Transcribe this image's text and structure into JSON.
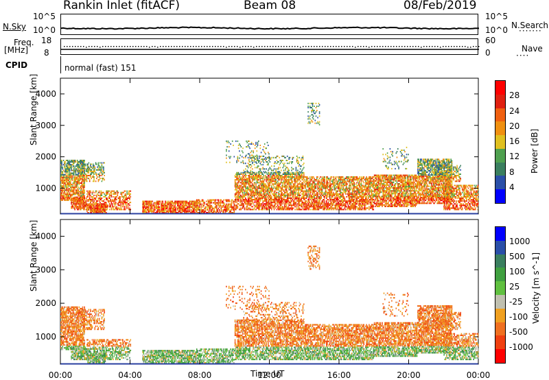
{
  "header": {
    "title": "Rankin Inlet (fitACF)",
    "beam": "Beam 08",
    "date": "08/Feb/2019"
  },
  "panel_nsky": {
    "label": "N.Sky",
    "ytick_top": "10^5",
    "ytick_bottom": "10^0",
    "right_label": "N.Search",
    "right_tick_top": "10^5",
    "right_tick_bottom": "10^0"
  },
  "panel_freq": {
    "label_line1": "Freq.",
    "label_line2": "[MHz]",
    "ytick_top": "18",
    "ytick_bottom": "8",
    "right_label": "Nave",
    "right_tick_top": "60",
    "right_tick_bottom": "0"
  },
  "panel_cpid": {
    "label": "CPID",
    "text": "normal (fast) 151"
  },
  "colors": {
    "power": [
      "#0000ff",
      "#2a4fa8",
      "#3a7f5f",
      "#4fa04f",
      "#e0c020",
      "#f09010",
      "#f06010",
      "#e02010",
      "#ff0000"
    ],
    "velocity": [
      "#ff0000",
      "#f04010",
      "#f07020",
      "#f0a020",
      "#c0c0b0",
      "#60c040",
      "#40a040",
      "#3a7f5f",
      "#2a4fa8",
      "#0000ff"
    ]
  },
  "chart_data": [
    {
      "type": "heatmap",
      "name": "power",
      "ylabel": "Slant Range [km]",
      "ylim": [
        180,
        4500
      ],
      "yticks": [
        "1000",
        "2000",
        "3000",
        "4000"
      ],
      "xlim": [
        0,
        24
      ],
      "colorbar_label": "Power [dB]",
      "colorbar_ticks": [
        "4",
        "8",
        "12",
        "16",
        "20",
        "24",
        "28"
      ],
      "colorbar_range": [
        0,
        32
      ]
    },
    {
      "type": "heatmap",
      "name": "velocity",
      "ylabel": "Slant Range [km]",
      "ylim": [
        180,
        4500
      ],
      "yticks": [
        "1000",
        "2000",
        "3000",
        "4000"
      ],
      "xlabel": "Time UT",
      "xticks": [
        "00:00",
        "04:00",
        "08:00",
        "12:00",
        "16:00",
        "20:00",
        "00:00"
      ],
      "xlim": [
        0,
        24
      ],
      "colorbar_label": "Velocity [m s^-1]",
      "colorbar_ticks": [
        "1000",
        "500",
        "100",
        "25",
        "-25",
        "-100",
        "-500",
        "-1000"
      ]
    }
  ]
}
